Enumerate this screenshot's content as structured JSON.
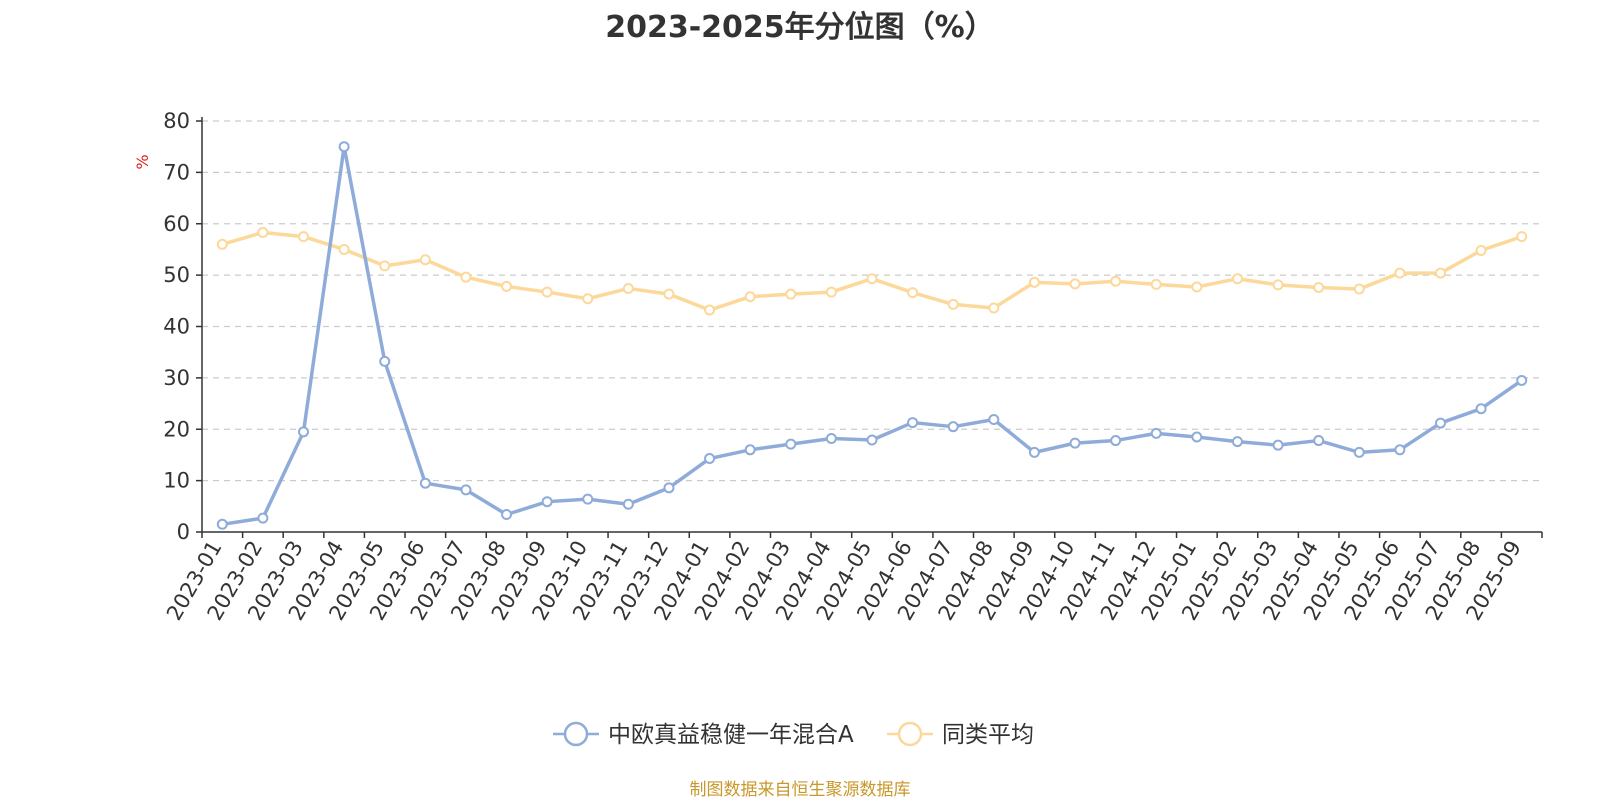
{
  "source_note": "制图数据来自恒生聚源数据库",
  "colors": {
    "fund": "#8fabd9",
    "avg": "#fcd89a",
    "axis": "#333333",
    "grid": "#cccccc",
    "ylabel": "#e02020",
    "text": "#333333"
  },
  "chart_data": {
    "type": "line",
    "title": "2023-2025年分位图（%）",
    "ylabel": "%",
    "ylim": [
      0,
      80
    ],
    "yticks": [
      0,
      10,
      20,
      30,
      40,
      50,
      60,
      70,
      80
    ],
    "grid": true,
    "legend_position": "bottom-center",
    "categories": [
      "2023-01",
      "2023-02",
      "2023-03",
      "2023-04",
      "2023-05",
      "2023-06",
      "2023-07",
      "2023-08",
      "2023-09",
      "2023-10",
      "2023-11",
      "2023-12",
      "2024-01",
      "2024-02",
      "2024-03",
      "2024-04",
      "2024-05",
      "2024-06",
      "2024-07",
      "2024-08",
      "2024-09",
      "2024-10",
      "2024-11",
      "2024-12",
      "2025-01",
      "2025-02",
      "2025-03",
      "2025-04",
      "2025-05",
      "2025-06",
      "2025-07",
      "2025-08",
      "2025-09"
    ],
    "series": [
      {
        "name": "中欧真益稳健一年混合A",
        "color_key": "fund",
        "values": [
          1.5,
          2.7,
          19.5,
          75,
          33.2,
          9.5,
          8.2,
          3.4,
          5.9,
          6.4,
          5.4,
          8.6,
          14.3,
          16.0,
          17.1,
          18.2,
          17.9,
          21.3,
          20.5,
          21.9,
          15.5,
          17.3,
          17.8,
          19.2,
          18.5,
          17.6,
          16.9,
          17.8,
          15.5,
          16.0,
          21.2,
          24.0,
          29.5
        ]
      },
      {
        "name": "同类平均",
        "color_key": "avg",
        "values": [
          56.0,
          58.3,
          57.5,
          55.0,
          51.8,
          53.0,
          49.6,
          47.8,
          46.7,
          45.4,
          47.4,
          46.3,
          43.2,
          45.8,
          46.3,
          46.7,
          49.3,
          46.6,
          44.3,
          43.6,
          48.6,
          48.3,
          48.8,
          48.2,
          47.7,
          49.3,
          48.1,
          47.6,
          47.3,
          50.4,
          50.4,
          54.8,
          57.5
        ]
      }
    ]
  }
}
